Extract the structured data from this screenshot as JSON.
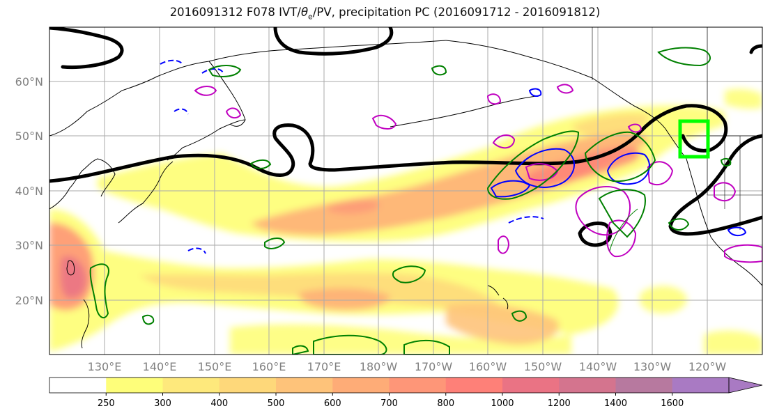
{
  "title": {
    "prefix": "2016091312 F078 IVT/",
    "theta_symbol": "θ",
    "theta_subscript": "e",
    "suffix": "/PV, precipitation PC (2016091712 - 2016091812)"
  },
  "map": {
    "lon_range": [
      120,
      -110
    ],
    "lat_range": [
      10,
      70
    ],
    "lat_labels": [
      "20°N",
      "30°N",
      "40°N",
      "50°N",
      "60°N"
    ],
    "lon_labels": [
      "130°E",
      "140°E",
      "150°E",
      "160°E",
      "170°E",
      "180°W",
      "170°W",
      "160°W",
      "150°W",
      "140°W",
      "130°W",
      "120°W"
    ],
    "colors": {
      "theta_e_contour": "#000000",
      "precip_contour": "#008000",
      "pv_positive_contour": "#c000c0",
      "pv_dashed_contour": "#0000ff",
      "highlight_box": "#00ff00",
      "grid": "#aaaaaa",
      "coastline": "#000000"
    },
    "layers": [
      "IVT filled",
      "theta_e contour",
      "PV contour",
      "precipitation PC contour",
      "target region box"
    ]
  },
  "colorbar": {
    "levels": [
      "250",
      "300",
      "400",
      "500",
      "600",
      "700",
      "800",
      "1000",
      "1200",
      "1400",
      "1600"
    ],
    "colors": [
      "#ffffff",
      "#fefe7a",
      "#fee97c",
      "#fed87a",
      "#fec37a",
      "#feac77",
      "#fe9678",
      "#fe8078",
      "#ea7384",
      "#d4748e",
      "#b7799f",
      "#a97ac3"
    ],
    "extend": "max"
  }
}
